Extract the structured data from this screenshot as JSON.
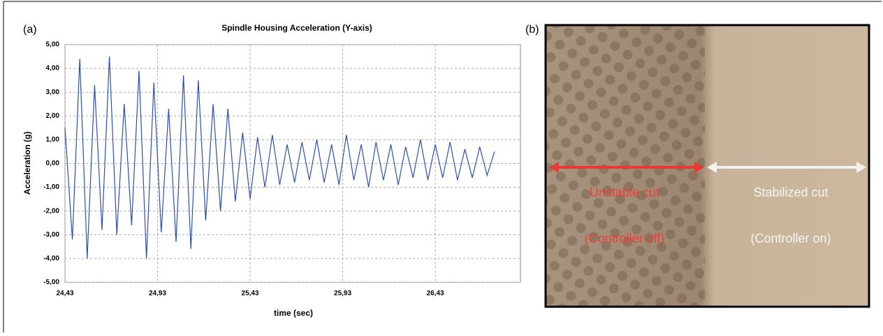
{
  "chart_data": {
    "type": "line",
    "panel_label": "(a)",
    "title": "Spindle Housing Acceleration (Y-axis)",
    "x_label": "time (sec)",
    "y_label": "Acceleration (g)",
    "x": [
      24.43,
      24.47,
      24.51,
      24.55,
      24.59,
      24.63,
      24.67,
      24.71,
      24.75,
      24.79,
      24.83,
      24.87,
      24.91,
      24.95,
      24.99,
      25.03,
      25.07,
      25.11,
      25.15,
      25.19,
      25.23,
      25.27,
      25.31,
      25.35,
      25.39,
      25.43,
      25.47,
      25.51,
      25.55,
      25.59,
      25.63,
      25.67,
      25.71,
      25.75,
      25.79,
      25.83,
      25.87,
      25.91,
      25.95,
      25.99,
      26.03,
      26.07,
      26.11,
      26.15,
      26.19,
      26.23,
      26.27,
      26.31,
      26.35,
      26.39,
      26.43,
      26.47,
      26.51,
      26.55,
      26.59,
      26.63,
      26.67,
      26.71,
      26.75
    ],
    "series": [
      {
        "color": "#2a4fb0",
        "values": [
          1.5,
          -3.2,
          4.4,
          -4.0,
          3.3,
          -2.8,
          4.5,
          -3.0,
          2.5,
          -2.6,
          3.9,
          -4.0,
          3.4,
          -2.9,
          2.3,
          -3.3,
          3.7,
          -3.6,
          3.5,
          -2.4,
          2.5,
          -2.0,
          2.3,
          -1.6,
          1.3,
          -1.5,
          1.1,
          -1.0,
          1.2,
          -0.9,
          0.8,
          -0.8,
          0.9,
          -0.7,
          1.0,
          -0.8,
          0.8,
          -0.9,
          1.2,
          -0.7,
          0.8,
          -1.0,
          0.9,
          -0.7,
          0.8,
          -0.9,
          0.7,
          -0.6,
          1.0,
          -0.7,
          0.8,
          -0.6,
          0.9,
          -0.7,
          0.6,
          -0.6,
          0.7,
          -0.5,
          0.5
        ]
      }
    ],
    "xlim": [
      24.43,
      26.89
    ],
    "xticks": [
      {
        "value": 24.43,
        "label": "24,43"
      },
      {
        "value": 24.93,
        "label": "24,93"
      },
      {
        "value": 25.43,
        "label": "25,43"
      },
      {
        "value": 25.93,
        "label": "25,93"
      },
      {
        "value": 26.43,
        "label": "26,43"
      }
    ],
    "ylim": [
      -5,
      5
    ],
    "yticks": [
      {
        "value": -5,
        "label": "-5,00"
      },
      {
        "value": -4,
        "label": "-4,00"
      },
      {
        "value": -3,
        "label": "-3,00"
      },
      {
        "value": -2,
        "label": "-2,00"
      },
      {
        "value": -1,
        "label": "-1,00"
      },
      {
        "value": 0,
        "label": "0,00"
      },
      {
        "value": 1,
        "label": "1,00"
      },
      {
        "value": 2,
        "label": "2,00"
      },
      {
        "value": 3,
        "label": "3,00"
      },
      {
        "value": 4,
        "label": "4,00"
      },
      {
        "value": 5,
        "label": "5,00"
      }
    ],
    "grid": true
  },
  "photo": {
    "panel_label": "(b)",
    "left_label": "Unstable cut",
    "left_sublabel": "(Controller off)",
    "right_label": "Stabilized cut",
    "right_sublabel": "(Controller on)"
  }
}
